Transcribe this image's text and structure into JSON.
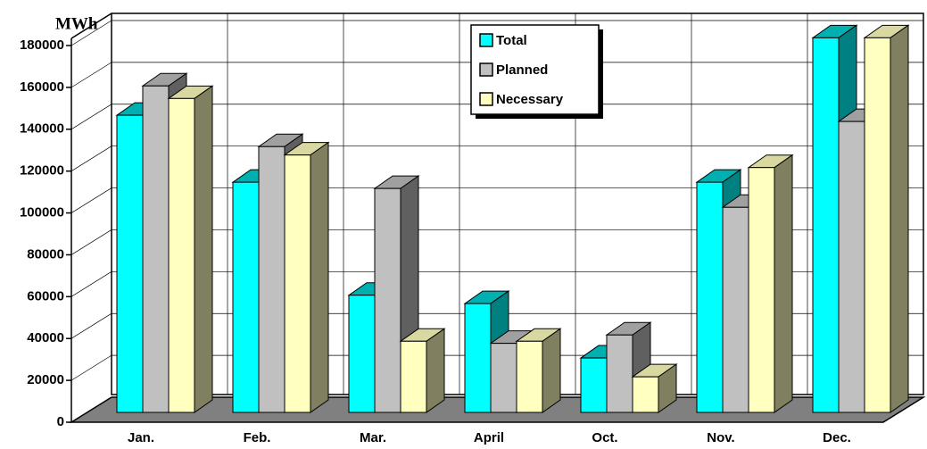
{
  "chart_data": {
    "type": "bar3d",
    "y_axis_label": "MWh",
    "categories": [
      "Jan.",
      "Feb.",
      "Mar.",
      "April",
      "Oct.",
      "Nov.",
      "Dec."
    ],
    "series": [
      {
        "name": "Total",
        "color": "#00ffff",
        "values": [
          142000,
          110000,
          56000,
          52000,
          26000,
          110000,
          179000
        ]
      },
      {
        "name": "Planned",
        "color": "#c0c0c0",
        "values": [
          156000,
          127000,
          107000,
          33000,
          37000,
          98000,
          139000
        ]
      },
      {
        "name": "Necessary",
        "color": "#ffffc0",
        "values": [
          150000,
          123000,
          34000,
          34000,
          17000,
          117000,
          179000
        ]
      }
    ],
    "ylim": [
      0,
      180000
    ],
    "yticks": [
      0,
      20000,
      40000,
      60000,
      80000,
      100000,
      120000,
      140000,
      160000,
      180000
    ],
    "grid": true
  }
}
